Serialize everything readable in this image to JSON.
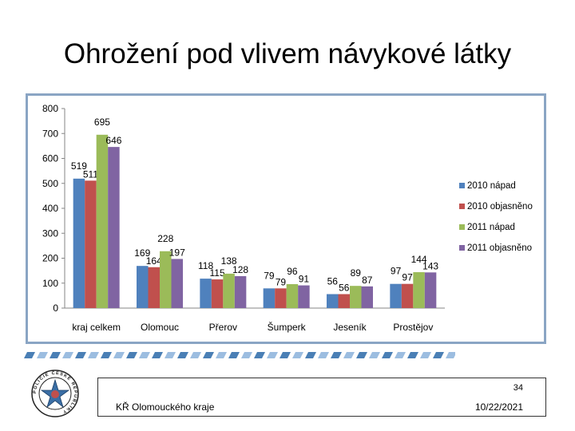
{
  "slide": {
    "title": "Ohrožení pod vlivem návykové látky",
    "slide_number": "34",
    "organization": "KŘ Olomouckého kraje",
    "date": "10/22/2021",
    "logo_text": "POLICIE ČESKÉ REPUBLIKY"
  },
  "chart_data": {
    "type": "bar",
    "title": "",
    "xlabel": "",
    "ylabel": "",
    "ylim": [
      0,
      800
    ],
    "yticks": [
      0,
      100,
      200,
      300,
      400,
      500,
      600,
      700,
      800
    ],
    "categories": [
      "kraj celkem",
      "Olomouc",
      "Přerov",
      "Šumperk",
      "Jeseník",
      "Prostějov"
    ],
    "series": [
      {
        "name": "2010 nápad",
        "color": "#4f81bd",
        "values": [
          519,
          169,
          118,
          79,
          56,
          97
        ]
      },
      {
        "name": "2010 objasněno",
        "color": "#c0504d",
        "values": [
          511,
          164,
          115,
          79,
          56,
          97
        ]
      },
      {
        "name": "2011 nápad",
        "color": "#9bbb59",
        "values": [
          695,
          228,
          138,
          96,
          89,
          144
        ]
      },
      {
        "name": "2011 objasněno",
        "color": "#8064a2",
        "values": [
          646,
          197,
          128,
          91,
          87,
          143
        ]
      }
    ],
    "legend_position": "right",
    "grid": false
  }
}
